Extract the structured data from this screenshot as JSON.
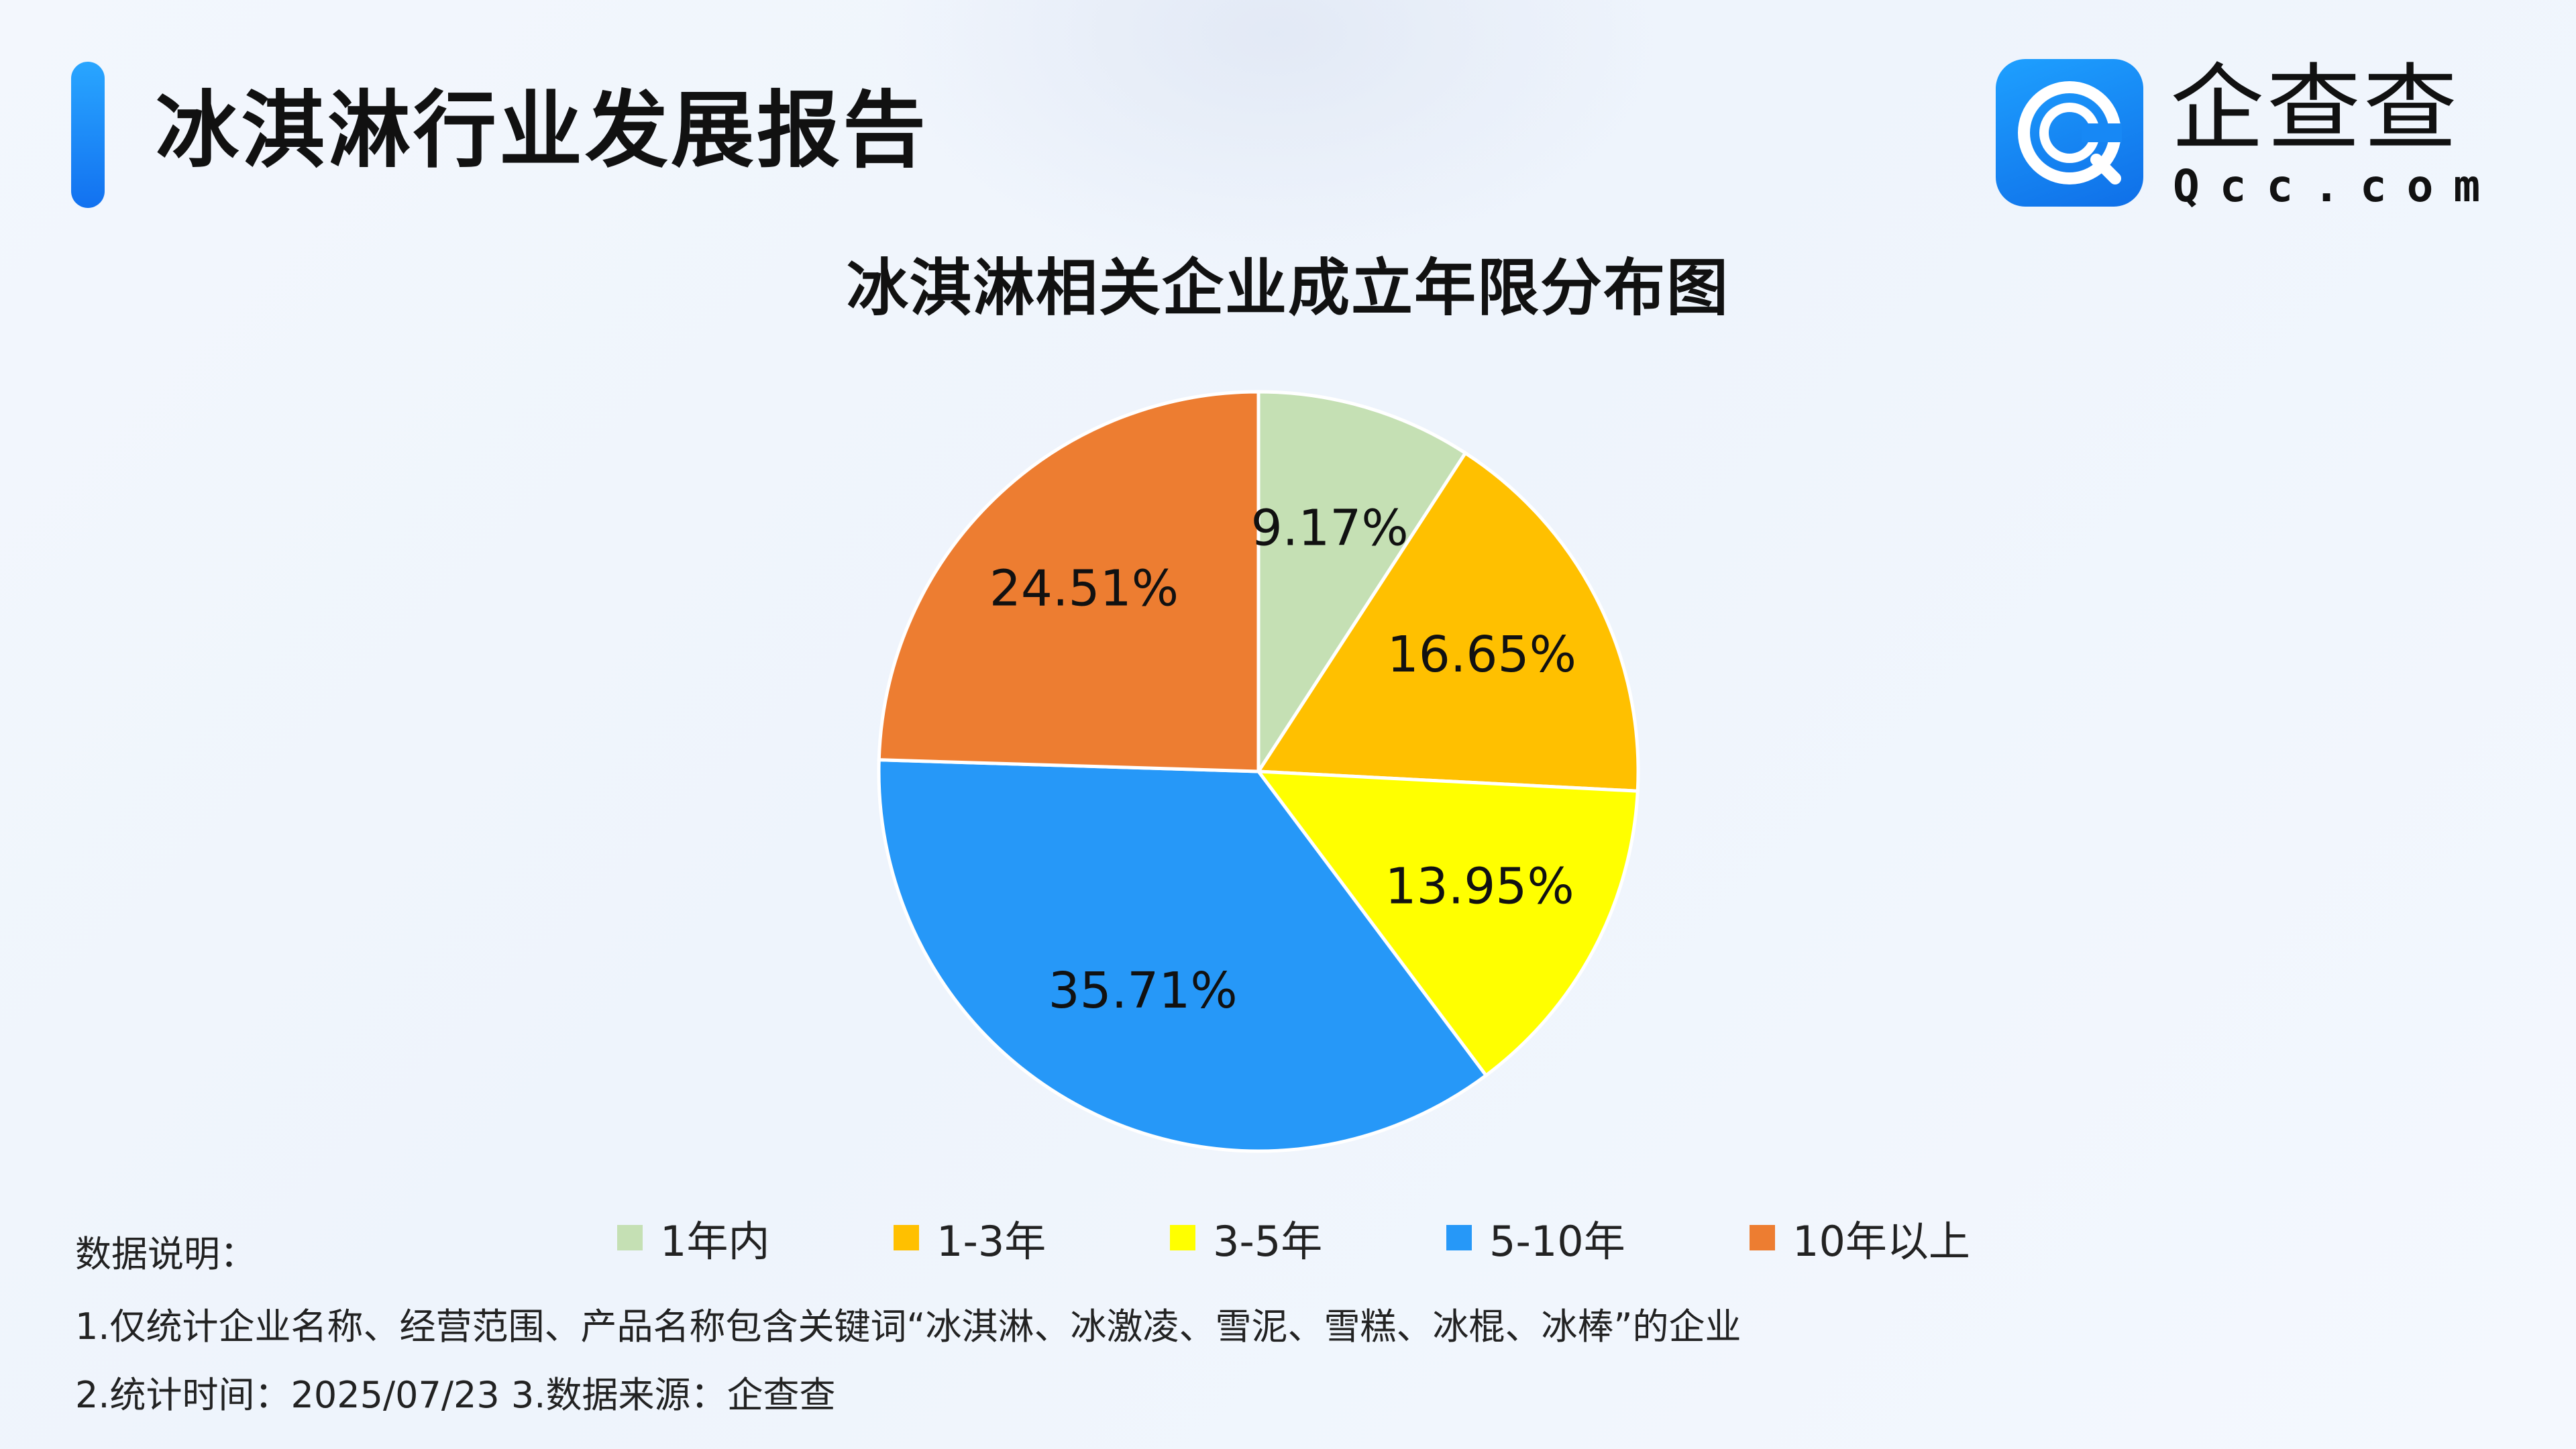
{
  "header": {
    "report_title": "冰淇淋行业发展报告",
    "logo": {
      "name": "企查查",
      "domain": "Qcc.com",
      "brand_color": "#1a8cff",
      "icon": "qcc-logo-icon"
    }
  },
  "chart_data": {
    "type": "pie",
    "title": "冰淇淋相关企业成立年限分布图",
    "categories": [
      "1年内",
      "1-3年",
      "3-5年",
      "5-10年",
      "10年以上"
    ],
    "values": [
      9.17,
      16.65,
      13.95,
      35.71,
      24.51
    ],
    "data_labels": [
      "9.17%",
      "16.65%",
      "13.95%",
      "35.71%",
      "24.51%"
    ],
    "colors": [
      "#c5e0b4",
      "#ffc000",
      "#ffff00",
      "#2698f8",
      "#ed7d31"
    ],
    "start_angle": "12 o'clock",
    "direction": "clockwise",
    "legend_position": "bottom"
  },
  "notes": {
    "heading": "数据说明：",
    "line1": "1.仅统计企业名称、经营范围、产品名称包含关键词“冰淇淋、冰激凌、雪泥、雪糕、冰棍、冰棒”的企业",
    "line2": "2.统计时间：2025/07/23    3.数据来源：企查查"
  }
}
